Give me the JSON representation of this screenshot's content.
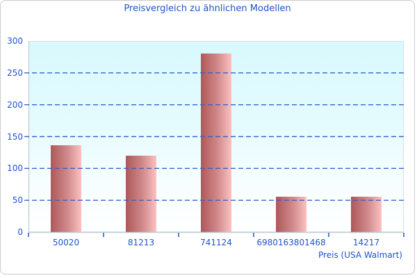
{
  "title": "Preisvergleich zu ähnlichen Modellen",
  "colors": {
    "title_text": "#1d53cb",
    "axis_text": "#1d53cb",
    "gridline": "#3363c6",
    "tick": "#2e5ec9",
    "axis_line": "#c6d2d8",
    "plot_border": "#d3dee2",
    "plot_bg_top": "#d8f9fd",
    "plot_bg_bottom": "#ffffff",
    "bar_gradient_left": "#ad585a",
    "bar_gradient_right": "#fcc1c1",
    "card_border": "#cbcbcb"
  },
  "chart_data": {
    "type": "bar",
    "title": "Preisvergleich zu ähnlichen Modellen",
    "categories": [
      "50020",
      "81213",
      "741124",
      "6980163801468",
      "14217"
    ],
    "values": [
      136,
      120,
      280,
      56,
      56
    ],
    "xlabel": "Preis (USA Walmart)",
    "ylabel": "",
    "ylim": [
      0,
      300
    ],
    "yticks": [
      0,
      50,
      100,
      150,
      200,
      250,
      300
    ],
    "gridlines_at": [
      50,
      100,
      150,
      200,
      250
    ],
    "grid_style": "horizontal dashed blue",
    "legend": "none",
    "bar_orientation": "vertical"
  }
}
